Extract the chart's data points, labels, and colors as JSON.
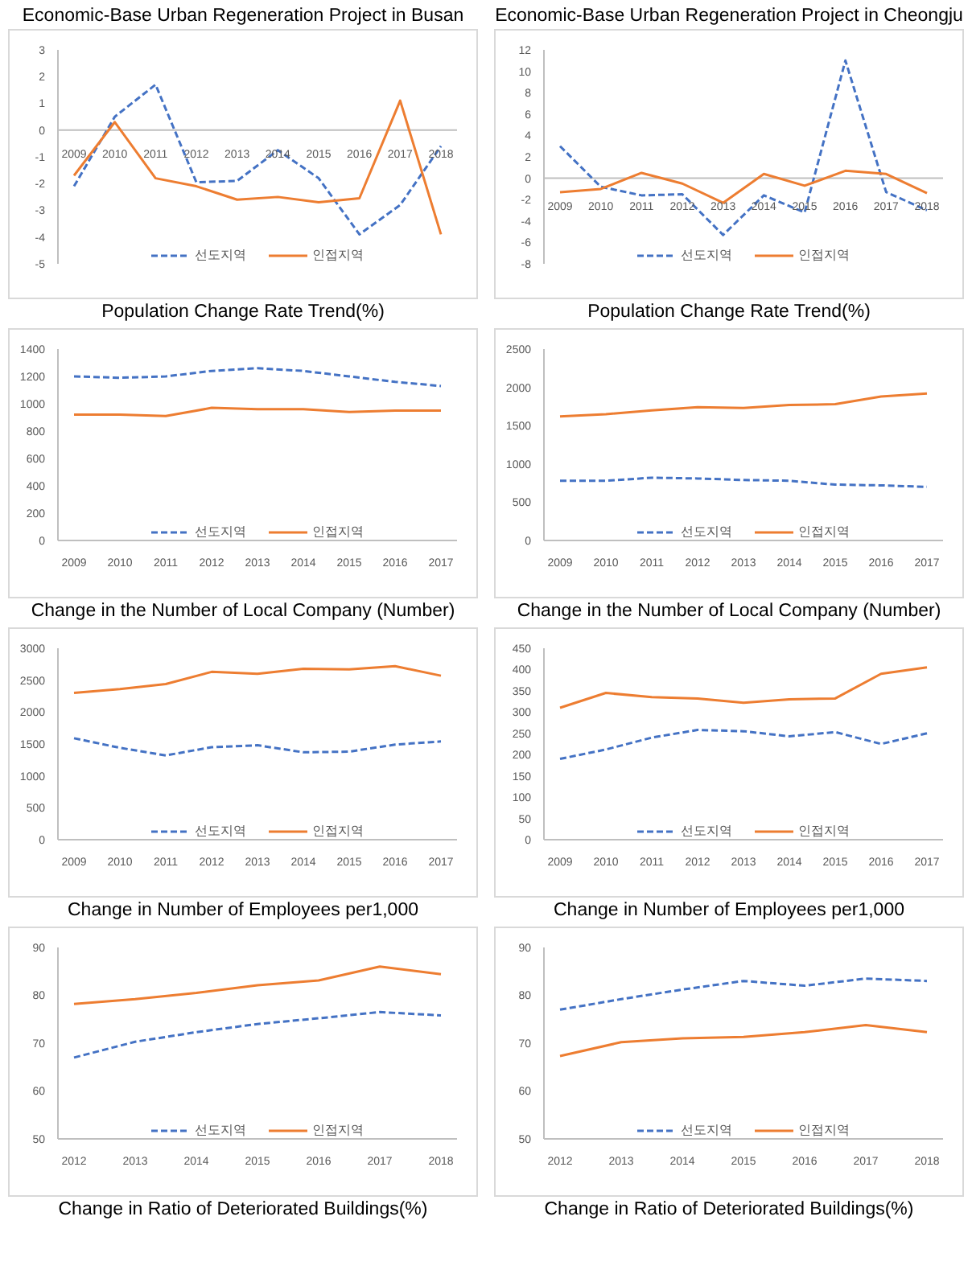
{
  "chart_data": [
    {
      "type": "line",
      "title": "Economic-Base Urban Regeneration Project in Busan",
      "xlabel": "Population Change Rate Trend(%)",
      "categories": [
        "2009",
        "2010",
        "2011",
        "2012",
        "2013",
        "2014",
        "2015",
        "2016",
        "2017",
        "2018"
      ],
      "ylim": [
        -5,
        3
      ],
      "yticks": [
        -5,
        -4,
        -3,
        -2,
        -1,
        0,
        1,
        2,
        3
      ],
      "grid": false,
      "legend": "bottom",
      "marker": "none",
      "series": [
        {
          "name": "선도지역",
          "color": "#4472c4",
          "line_style": "dashed",
          "values": [
            -2.1,
            0.5,
            1.7,
            -1.95,
            -1.9,
            -0.75,
            -1.8,
            -3.9,
            -2.8,
            -0.6
          ]
        },
        {
          "name": "인접지역",
          "color": "#ed7d31",
          "line_style": "solid",
          "values": [
            -1.7,
            0.3,
            -1.8,
            -2.1,
            -2.6,
            -2.5,
            -2.7,
            -2.55,
            1.1,
            -3.9
          ]
        }
      ]
    },
    {
      "type": "line",
      "title": "Economic-Base Urban Regeneration Project in Cheongju",
      "xlabel": "Population Change Rate Trend(%)",
      "categories": [
        "2009",
        "2010",
        "2011",
        "2012",
        "2013",
        "2014",
        "2015",
        "2016",
        "2017",
        "2018"
      ],
      "ylim": [
        -8,
        12
      ],
      "yticks": [
        -8,
        -6,
        -4,
        -2,
        0,
        2,
        4,
        6,
        8,
        10,
        12
      ],
      "grid": false,
      "legend": "bottom",
      "marker": "none",
      "series": [
        {
          "name": "선도지역",
          "color": "#4472c4",
          "line_style": "dashed",
          "values": [
            3,
            -0.8,
            -1.6,
            -1.5,
            -5.3,
            -1.6,
            -3.2,
            11,
            -1.3,
            -3
          ]
        },
        {
          "name": "인접지역",
          "color": "#ed7d31",
          "line_style": "solid",
          "values": [
            -1.3,
            -1,
            0.5,
            -0.5,
            -2.3,
            0.4,
            -0.7,
            0.7,
            0.4,
            -1.4
          ]
        }
      ]
    },
    {
      "type": "line",
      "xlabel": "Change in the Number of Local Company (Number)",
      "categories": [
        "2009",
        "2010",
        "2011",
        "2012",
        "2013",
        "2014",
        "2015",
        "2016",
        "2017"
      ],
      "ylim": [
        0,
        1400
      ],
      "yticks": [
        0,
        200,
        400,
        600,
        800,
        1000,
        1200,
        1400
      ],
      "grid": false,
      "legend": "bottom",
      "marker": "none",
      "series": [
        {
          "name": "선도지역",
          "color": "#4472c4",
          "line_style": "dashed",
          "values": [
            1200,
            1190,
            1200,
            1240,
            1260,
            1240,
            1200,
            1160,
            1130
          ]
        },
        {
          "name": "인접지역",
          "color": "#ed7d31",
          "line_style": "solid",
          "values": [
            920,
            920,
            910,
            970,
            960,
            960,
            940,
            950,
            950
          ]
        }
      ]
    },
    {
      "type": "line",
      "xlabel": "Change in the Number of Local Company (Number)",
      "categories": [
        "2009",
        "2010",
        "2011",
        "2012",
        "2013",
        "2014",
        "2015",
        "2016",
        "2017"
      ],
      "ylim": [
        0,
        2500
      ],
      "yticks": [
        0,
        500,
        1000,
        1500,
        2000,
        2500
      ],
      "grid": false,
      "legend": "bottom",
      "marker": "none",
      "series": [
        {
          "name": "선도지역",
          "color": "#4472c4",
          "line_style": "dashed",
          "values": [
            780,
            780,
            820,
            810,
            790,
            780,
            730,
            720,
            700
          ]
        },
        {
          "name": "인접지역",
          "color": "#ed7d31",
          "line_style": "solid",
          "values": [
            1620,
            1650,
            1700,
            1740,
            1730,
            1770,
            1780,
            1880,
            1920
          ]
        }
      ]
    },
    {
      "type": "line",
      "xlabel": "Change in Number of Employees per1,000",
      "categories": [
        "2009",
        "2010",
        "2011",
        "2012",
        "2013",
        "2014",
        "2015",
        "2016",
        "2017"
      ],
      "ylim": [
        0,
        3000
      ],
      "yticks": [
        0,
        500,
        1000,
        1500,
        2000,
        2500,
        3000
      ],
      "grid": false,
      "legend": "bottom",
      "marker": "none",
      "series": [
        {
          "name": "선도지역",
          "color": "#4472c4",
          "line_style": "dashed",
          "values": [
            1590,
            1440,
            1320,
            1450,
            1480,
            1370,
            1380,
            1490,
            1540
          ]
        },
        {
          "name": "인접지역",
          "color": "#ed7d31",
          "line_style": "solid",
          "values": [
            2300,
            2360,
            2440,
            2630,
            2600,
            2680,
            2670,
            2720,
            2570
          ]
        }
      ]
    },
    {
      "type": "line",
      "xlabel": "Change in Number of Employees per1,000",
      "categories": [
        "2009",
        "2010",
        "2011",
        "2012",
        "2013",
        "2014",
        "2015",
        "2016",
        "2017"
      ],
      "ylim": [
        0,
        450
      ],
      "yticks": [
        0,
        50,
        100,
        150,
        200,
        250,
        300,
        350,
        400,
        450
      ],
      "grid": false,
      "legend": "bottom",
      "marker": "none",
      "series": [
        {
          "name": "선도지역",
          "color": "#4472c4",
          "line_style": "dashed",
          "values": [
            190,
            212,
            240,
            258,
            255,
            243,
            253,
            225,
            250
          ]
        },
        {
          "name": "인접지역",
          "color": "#ed7d31",
          "line_style": "solid",
          "values": [
            310,
            345,
            335,
            332,
            322,
            330,
            332,
            390,
            405
          ]
        }
      ]
    },
    {
      "type": "line",
      "xlabel": "Change in Ratio of Deteriorated Buildings(%)",
      "categories": [
        "2012",
        "2013",
        "2014",
        "2015",
        "2016",
        "2017",
        "2018"
      ],
      "ylim": [
        50,
        90
      ],
      "yticks": [
        50,
        60,
        70,
        80,
        90
      ],
      "grid": false,
      "legend": "bottom",
      "marker": "none",
      "series": [
        {
          "name": "선도지역",
          "color": "#4472c4",
          "line_style": "dashed",
          "values": [
            67,
            70.3,
            72.3,
            74,
            75.2,
            76.5,
            75.8
          ]
        },
        {
          "name": "인접지역",
          "color": "#ed7d31",
          "line_style": "solid",
          "values": [
            78.2,
            79.2,
            80.5,
            82.1,
            83.1,
            86,
            84.4
          ]
        }
      ]
    },
    {
      "type": "line",
      "xlabel": "Change in Ratio of Deteriorated Buildings(%)",
      "categories": [
        "2012",
        "2013",
        "2014",
        "2015",
        "2016",
        "2017",
        "2018"
      ],
      "ylim": [
        50,
        90
      ],
      "yticks": [
        50,
        60,
        70,
        80,
        90
      ],
      "grid": false,
      "legend": "bottom",
      "marker": "none",
      "series": [
        {
          "name": "선도지역",
          "color": "#4472c4",
          "line_style": "dashed",
          "values": [
            77,
            79.2,
            81.2,
            83,
            82,
            83.5,
            83
          ]
        },
        {
          "name": "인접지역",
          "color": "#ed7d31",
          "line_style": "solid",
          "values": [
            67.3,
            70.2,
            71,
            71.3,
            72.3,
            73.8,
            72.3
          ]
        }
      ]
    }
  ]
}
